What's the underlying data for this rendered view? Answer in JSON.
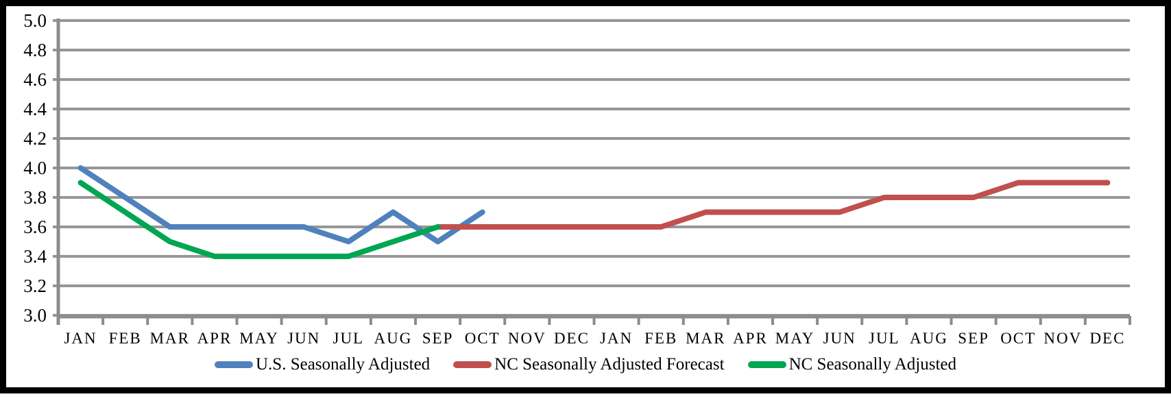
{
  "chart_data": {
    "type": "line",
    "title": "",
    "xlabel": "",
    "ylabel": "",
    "x_categories": [
      "JAN",
      "FEB",
      "MAR",
      "APR",
      "MAY",
      "JUN",
      "JUL",
      "AUG",
      "SEP",
      "OCT",
      "NOV",
      "DEC",
      "JAN",
      "FEB",
      "MAR",
      "APR",
      "MAY",
      "JUN",
      "JUL",
      "AUG",
      "SEP",
      "OCT",
      "NOV",
      "DEC"
    ],
    "ylim": [
      3.0,
      5.0
    ],
    "ytick_step": 0.2,
    "ytick_labels": [
      "5.0",
      "4.8",
      "4.6",
      "4.4",
      "4.2",
      "4.0",
      "3.8",
      "3.6",
      "3.4",
      "3.2",
      "3.0"
    ],
    "grid": true,
    "legend_position": "bottom",
    "series": [
      {
        "name": "U.S. Seasonally Adjusted",
        "color": "#4F81BD",
        "start_month_index": 0,
        "values": [
          4.0,
          3.8,
          3.6,
          3.6,
          3.6,
          3.6,
          3.5,
          3.7,
          3.5,
          3.7
        ]
      },
      {
        "name": "NC Seasonally Adjusted Forecast",
        "color": "#C0504D",
        "start_month_index": 8,
        "values": [
          3.6,
          3.6,
          3.6,
          3.6,
          3.6,
          3.6,
          3.7,
          3.7,
          3.7,
          3.7,
          3.8,
          3.8,
          3.8,
          3.9,
          3.9,
          3.9
        ]
      },
      {
        "name": "NC Seasonally Adjusted",
        "color": "#00A651",
        "start_month_index": 0,
        "values": [
          3.9,
          3.7,
          3.5,
          3.4,
          3.4,
          3.4,
          3.4,
          3.5,
          3.6
        ]
      }
    ]
  },
  "colors": {
    "grid": "#969696",
    "axis": "#8C8C8C",
    "frame": "#000000",
    "text": "#000000"
  }
}
